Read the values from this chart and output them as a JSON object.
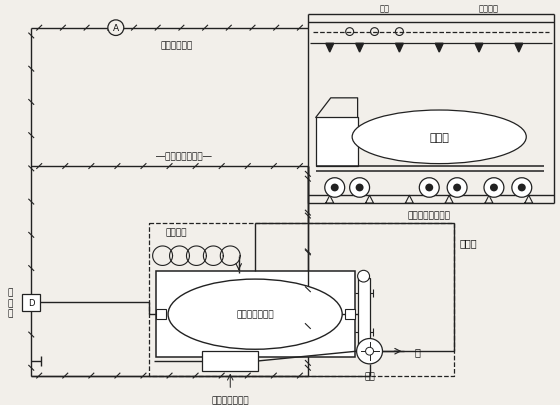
{
  "bg_color": "#f2efea",
  "line_color": "#222222",
  "text_color": "#111111",
  "fig_width": 5.6,
  "fig_height": 4.06,
  "dpi": 100,
  "labels": {
    "signal_amp": "信号放大装置",
    "foam_mix_line": "―泡沫混合液管线―",
    "aux_hose": "辅助软管",
    "foam_tank": "囊式泡沫液储罐",
    "foam_mixer": "泡沫比例混合器",
    "foam_station": "泡沫站",
    "rain_valve": "雨\n淤\n阀",
    "water_pump": "水泵",
    "water": "水",
    "probe": "探头",
    "foam_nozzle": "泡沫喷头",
    "oil_truck": "油槽车",
    "ground_nozzle": "落地雾化泡沫喷头"
  }
}
